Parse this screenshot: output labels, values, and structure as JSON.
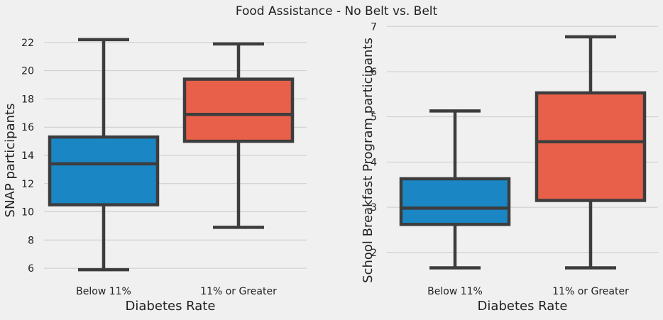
{
  "title": "Food Assistance - No Belt vs. Belt",
  "colors": {
    "background": "#f0f0f0",
    "grid": "#cbcbcb",
    "box_line": "#3d3d3d",
    "series": [
      "#1a87c4",
      "#e8604a"
    ]
  },
  "chart_data": [
    {
      "type": "box",
      "xlabel": "Diabetes Rate",
      "ylabel": "SNAP participants",
      "categories": [
        "Below 11%",
        "11% or Greater"
      ],
      "yticks": [
        6,
        8,
        10,
        12,
        14,
        16,
        18,
        20,
        22
      ],
      "ylim": [
        5.2,
        23.2
      ],
      "grid": "y",
      "boxes": [
        {
          "category": "Below 11%",
          "whisker_low": 5.9,
          "q1": 10.5,
          "median": 13.4,
          "q3": 15.3,
          "whisker_high": 22.2
        },
        {
          "category": "11% or Greater",
          "whisker_low": 8.9,
          "q1": 15.0,
          "median": 16.9,
          "q3": 19.4,
          "whisker_high": 21.9
        }
      ]
    },
    {
      "type": "box",
      "xlabel": "Diabetes Rate",
      "ylabel": "School Breakfast Program participants",
      "categories": [
        "Below 11%",
        "11% or Greater"
      ],
      "yticks": [
        2,
        3,
        4,
        5,
        6,
        7
      ],
      "ylim": [
        1.4,
        7.02
      ],
      "grid": "y",
      "boxes": [
        {
          "category": "Below 11%",
          "whisker_low": 1.66,
          "q1": 2.62,
          "median": 2.98,
          "q3": 3.63,
          "whisker_high": 5.13
        },
        {
          "category": "11% or Greater",
          "whisker_low": 1.66,
          "q1": 3.15,
          "median": 4.45,
          "q3": 5.53,
          "whisker_high": 6.77
        }
      ]
    }
  ]
}
